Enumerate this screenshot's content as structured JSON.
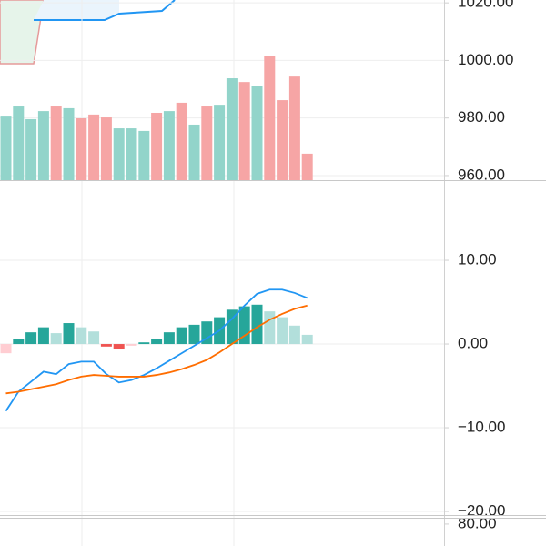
{
  "chart_data": [
    {
      "type": "bar",
      "categories": [
        null,
        null,
        null,
        null,
        null,
        null,
        null,
        null,
        null,
        null,
        null,
        null,
        null,
        null,
        null,
        null,
        null,
        null,
        null,
        null,
        null,
        null,
        null,
        null,
        null
      ],
      "values": [
        980.5,
        984,
        979.6,
        982.4,
        984,
        983.4,
        979.9,
        981.2,
        980.2,
        976.4,
        976.4,
        975.5,
        981.8,
        982.4,
        985.3,
        977.7,
        984,
        984.6,
        993.8,
        992.5,
        991,
        1001.7,
        986.2,
        994.4,
        967.6
      ],
      "colors": [
        "#92d4ca",
        "#92d4ca",
        "#92d4ca",
        "#92d4ca",
        "#f6a5a5",
        "#92d4ca",
        "#f6a5a5",
        "#f6a5a5",
        "#f6a5a5",
        "#92d4ca",
        "#92d4ca",
        "#92d4ca",
        "#f6a5a5",
        "#92d4ca",
        "#f6a5a5",
        "#92d4ca",
        "#f6a5a5",
        "#92d4ca",
        "#92d4ca",
        "#f6a5a5",
        "#92d4ca",
        "#f6a5a5",
        "#f6a5a5",
        "#f6a5a5",
        "#f6a5a5"
      ],
      "ylim": [
        958.4,
        1021
      ],
      "yticks": [
        {
          "value": 960,
          "label": "960.00"
        },
        {
          "value": 980,
          "label": "980.00"
        },
        {
          "value": 1000,
          "label": "1000.00"
        },
        {
          "value": 1020,
          "label": "1020.00"
        }
      ],
      "grid": true
    },
    {
      "type": "macd",
      "categories": [
        null,
        null,
        null,
        null,
        null,
        null,
        null,
        null,
        null,
        null,
        null,
        null,
        null,
        null,
        null,
        null,
        null,
        null,
        null,
        null,
        null,
        null,
        null,
        null,
        null
      ],
      "histogram": [
        -1.1,
        0.65,
        1.4,
        2.0,
        1.3,
        2.5,
        2.0,
        1.5,
        -0.3,
        -0.65,
        -0.2,
        0.2,
        0.65,
        1.4,
        2.0,
        2.3,
        2.7,
        3.2,
        4.1,
        4.5,
        4.7,
        3.9,
        3.2,
        2.2,
        1.1
      ],
      "histogram_colors": [
        "#ffcdd2",
        "#26a69a",
        "#26a69a",
        "#26a69a",
        "#b2dfdb",
        "#26a69a",
        "#b2dfdb",
        "#b2dfdb",
        "#ef5350",
        "#ef5350",
        "#ffcdd2",
        "#26a69a",
        "#26a69a",
        "#26a69a",
        "#26a69a",
        "#26a69a",
        "#26a69a",
        "#26a69a",
        "#26a69a",
        "#26a69a",
        "#26a69a",
        "#b2dfdb",
        "#b2dfdb",
        "#b2dfdb",
        "#b2dfdb"
      ],
      "series": [
        {
          "color": "#2196f3",
          "values": [
            -8.0,
            -5.7,
            -4.5,
            -3.3,
            -3.6,
            -2.4,
            -2.1,
            -2.1,
            -3.6,
            -4.6,
            -4.3,
            -3.7,
            -2.9,
            -2.0,
            -1.1,
            -0.2,
            0.7,
            1.6,
            3.0,
            4.6,
            6.0,
            6.5,
            6.5,
            6.1,
            5.5
          ]
        },
        {
          "color": "#ff6d00",
          "values": [
            -5.9,
            -5.7,
            -5.4,
            -5.1,
            -4.8,
            -4.3,
            -3.9,
            -3.7,
            -3.8,
            -3.9,
            -3.9,
            -3.9,
            -3.7,
            -3.4,
            -3.0,
            -2.5,
            -1.9,
            -1.0,
            0.0,
            1.0,
            2.0,
            2.9,
            3.6,
            4.2,
            4.6
          ]
        }
      ],
      "ylim": [
        -20.54,
        19.57
      ],
      "yticks": [
        {
          "value": -20,
          "label": "−20.00"
        },
        {
          "value": -10,
          "label": "−10.00"
        },
        {
          "value": 0,
          "label": "0.00"
        },
        {
          "value": 10,
          "label": "10.00"
        }
      ],
      "grid": true
    },
    {
      "type": "line",
      "ylim": [
        69.2,
        84
      ],
      "yticks": [
        {
          "value": 80,
          "label": "80.00"
        }
      ],
      "grid": false
    }
  ]
}
